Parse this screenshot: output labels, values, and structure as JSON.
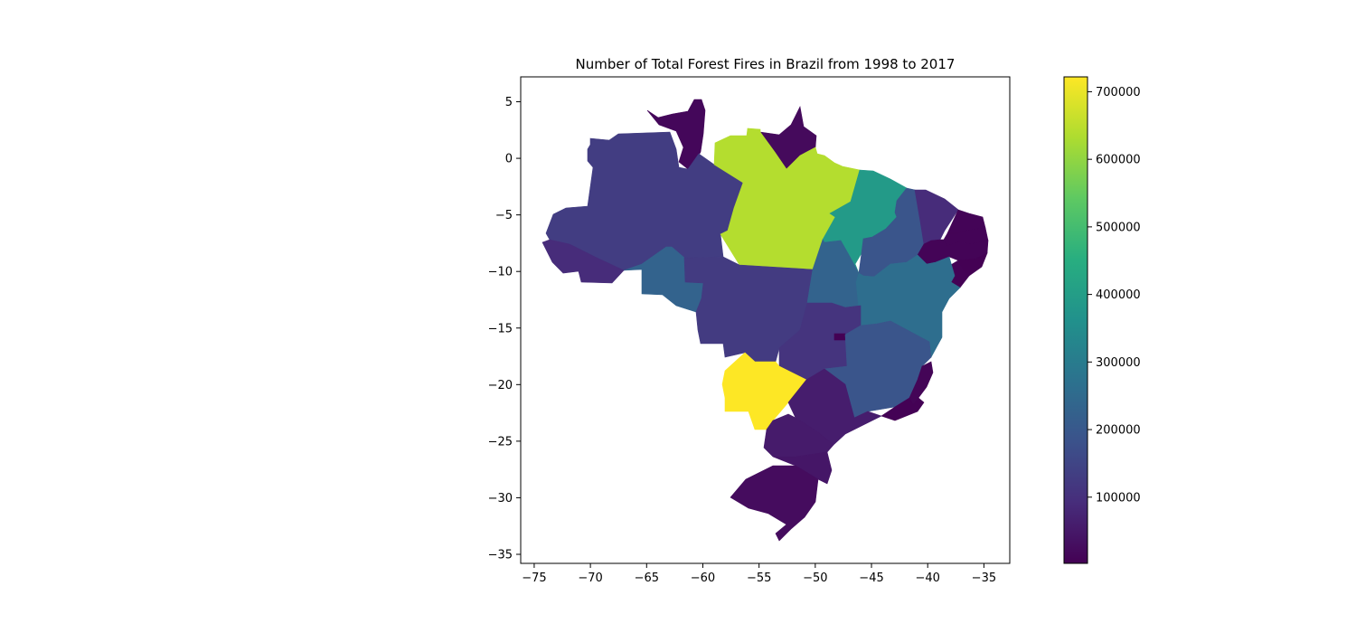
{
  "title": "Number of Total Forest Fires in Brazil from 1998 to 2017",
  "x_axis": {
    "range": [
      -76.2,
      -32.7
    ],
    "ticks": [
      -75,
      -70,
      -65,
      -60,
      -55,
      -50,
      -45,
      -40,
      -35
    ],
    "tick_labels": [
      "−75",
      "−70",
      "−65",
      "−60",
      "−55",
      "−50",
      "−45",
      "−40",
      "−35"
    ]
  },
  "y_axis": {
    "range": [
      -35.8,
      7.2
    ],
    "ticks": [
      5,
      0,
      -5,
      -10,
      -15,
      -20,
      -25,
      -30,
      -35
    ],
    "tick_labels": [
      "5",
      "0",
      "−5",
      "−10",
      "−15",
      "−20",
      "−25",
      "−30",
      "−35"
    ]
  },
  "colorbar": {
    "colormap": "viridis",
    "range": [
      2000,
      722000
    ],
    "ticks": [
      100000,
      200000,
      300000,
      400000,
      500000,
      600000,
      700000
    ],
    "tick_labels": [
      "100000",
      "200000",
      "300000",
      "400000",
      "500000",
      "600000",
      "700000"
    ]
  },
  "chart_data": {
    "type": "choropleth",
    "title": "Number of Total Forest Fires in Brazil from 1998 to 2017",
    "colorbar_range": [
      2000,
      722000
    ],
    "regions": [
      {
        "id": "roraima",
        "value": 15000
      },
      {
        "id": "amapa",
        "value": 20000
      },
      {
        "id": "amazonas",
        "value": 130000
      },
      {
        "id": "para",
        "value": 640000
      },
      {
        "id": "maranhao",
        "value": 390000
      },
      {
        "id": "piaui",
        "value": 190000
      },
      {
        "id": "ceara",
        "value": 90000
      },
      {
        "id": "rio-grande-do-norte",
        "value": 8000
      },
      {
        "id": "paraiba",
        "value": 8000
      },
      {
        "id": "pernambuco",
        "value": 8000
      },
      {
        "id": "alagoas",
        "value": 3000
      },
      {
        "id": "sergipe",
        "value": 5000
      },
      {
        "id": "acre",
        "value": 90000
      },
      {
        "id": "rondonia",
        "value": 230000
      },
      {
        "id": "mato-grosso",
        "value": 125000
      },
      {
        "id": "tocantins",
        "value": 230000
      },
      {
        "id": "bahia",
        "value": 260000
      },
      {
        "id": "goias",
        "value": 110000
      },
      {
        "id": "distrito-federal",
        "value": 3000
      },
      {
        "id": "mato-grosso-do-sul",
        "value": 722000
      },
      {
        "id": "minas-gerais",
        "value": 190000
      },
      {
        "id": "espirito-santo",
        "value": 10000
      },
      {
        "id": "rio-de-janeiro",
        "value": 5000
      },
      {
        "id": "sao-paulo",
        "value": 60000
      },
      {
        "id": "parana",
        "value": 55000
      },
      {
        "id": "santa-catarina",
        "value": 45000
      },
      {
        "id": "rio-grande-do-sul",
        "value": 25000
      }
    ]
  }
}
